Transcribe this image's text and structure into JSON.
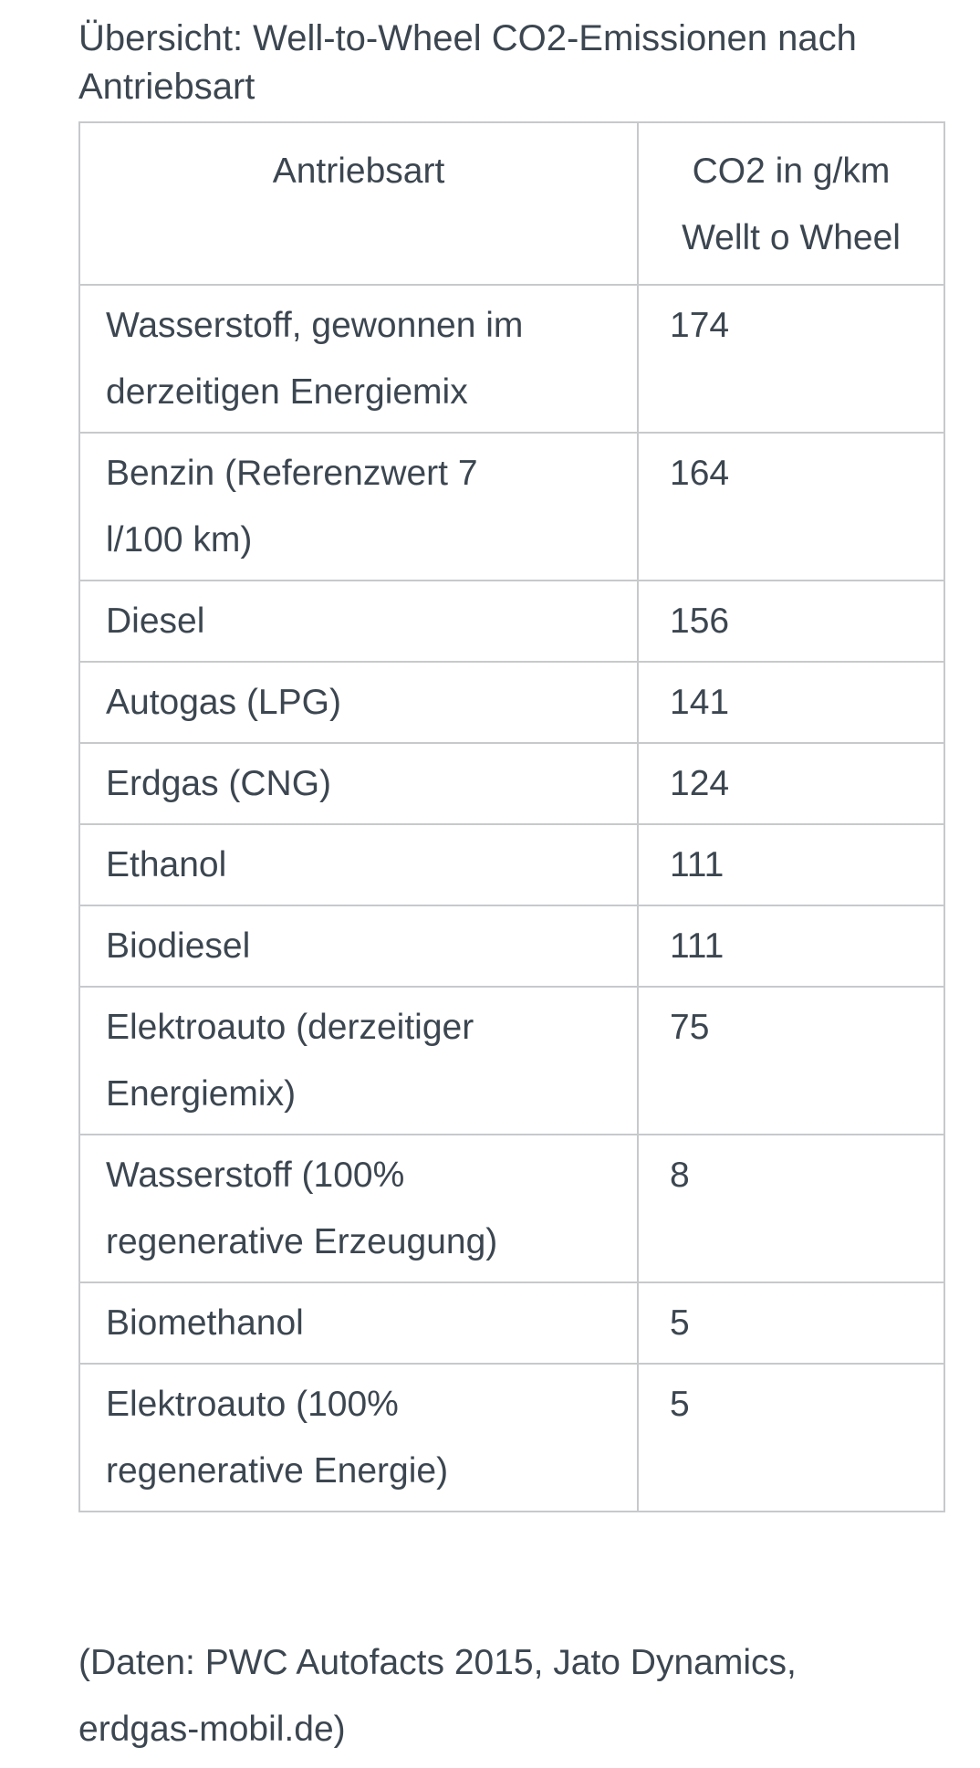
{
  "page": {
    "title": "Übersicht: Well-to-Wheel CO2-Emissionen nach\nAntriebsart",
    "source_note": "(Daten: PWC Autofacts 2015, Jato Dynamics,\nerdgas-mobil.de)"
  },
  "table": {
    "headers": {
      "antriebsart": "Antriebsart",
      "co2": "CO2 in g/km\nWellt o Wheel"
    },
    "rows": [
      {
        "antriebsart": "Wasserstoff, gewonnen im\nderzeitigen Energiemix",
        "co2": "174"
      },
      {
        "antriebsart": "Benzin (Referenzwert 7\nl/100 km)",
        "co2": "164"
      },
      {
        "antriebsart": "Diesel",
        "co2": "156"
      },
      {
        "antriebsart": "Autogas (LPG)",
        "co2": "141"
      },
      {
        "antriebsart": "Erdgas (CNG)",
        "co2": "124"
      },
      {
        "antriebsart": "Ethanol",
        "co2": "111"
      },
      {
        "antriebsart": "Biodiesel",
        "co2": "111"
      },
      {
        "antriebsart": "Elektroauto (derzeitiger\nEnergiemix)",
        "co2": "75"
      },
      {
        "antriebsart": "Wasserstoff (100%\nregenerative Erzeugung)",
        "co2": "8"
      },
      {
        "antriebsart": "Biomethanol",
        "co2": "5"
      },
      {
        "antriebsart": "Elektroauto (100%\nregenerative Energie)",
        "co2": "5"
      }
    ]
  },
  "colors": {
    "text": "#3c4650",
    "border": "#c7c9cb",
    "background": "#ffffff"
  },
  "chart_data": {
    "type": "table",
    "title": "Übersicht: Well-to-Wheel CO2-Emissionen nach Antriebsart",
    "columns": [
      "Antriebsart",
      "CO2 in g/km Wellt o Wheel"
    ],
    "categories": [
      "Wasserstoff, gewonnen im derzeitigen Energiemix",
      "Benzin (Referenzwert 7 l/100 km)",
      "Diesel",
      "Autogas (LPG)",
      "Erdgas (CNG)",
      "Ethanol",
      "Biodiesel",
      "Elektroauto (derzeitiger Energiemix)",
      "Wasserstoff (100% regenerative Erzeugung)",
      "Biomethanol",
      "Elektroauto (100% regenerative Energie)"
    ],
    "values": [
      174,
      164,
      156,
      141,
      124,
      111,
      111,
      75,
      8,
      5,
      5
    ],
    "source": "(Daten: PWC Autofacts 2015, Jato Dynamics, erdgas-mobil.de)"
  }
}
